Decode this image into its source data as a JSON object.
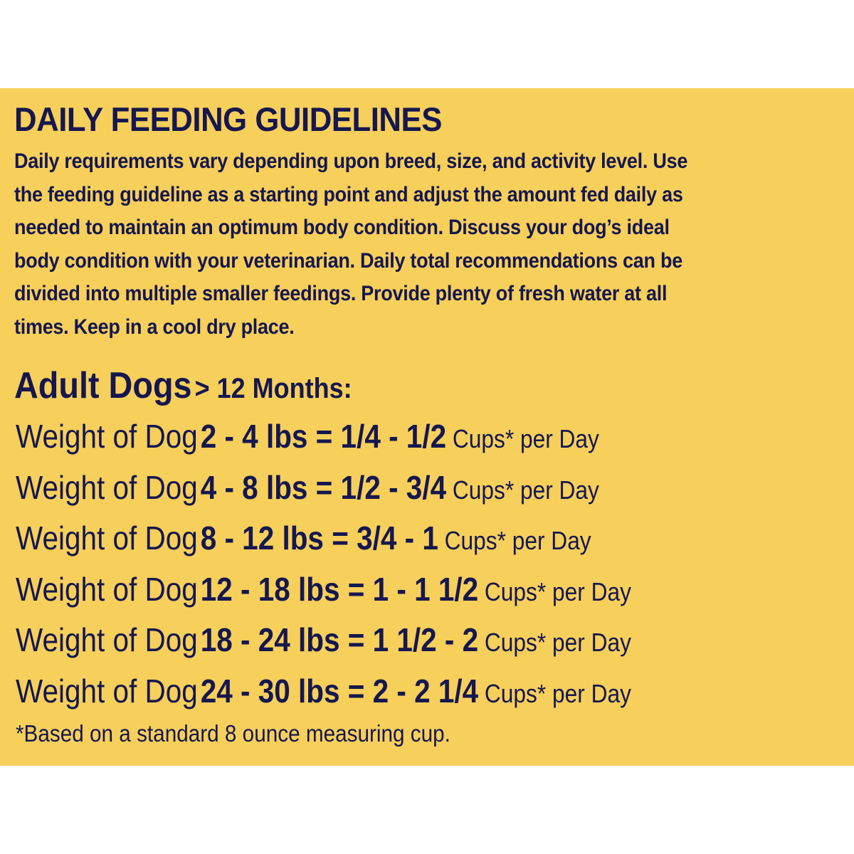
{
  "title": "DAILY FEEDING GUIDELINES",
  "paragraph_lines": [
    "Daily requirements vary depending upon breed, size, and activity level. Use",
    "the feeding guideline as a starting point and adjust the amount fed daily as",
    "needed to maintain an optimum body condition. Discuss your dog’s ideal",
    "body condition with your veterinarian. Daily total recommendations can be",
    "divided into multiple smaller feedings. Provide plenty of fresh water at all",
    "times. Keep in a cool dry place."
  ],
  "subheading": {
    "main": "Adult Dogs",
    "suffix": "> 12 Months:"
  },
  "rows": [
    {
      "label": "Weight of Dog",
      "value": "2 - 4 lbs = 1/4 - 1/2",
      "unit": "Cups* per Day"
    },
    {
      "label": "Weight of Dog",
      "value": "4 - 8 lbs = 1/2 - 3/4",
      "unit": "Cups* per Day"
    },
    {
      "label": "Weight of Dog",
      "value": "8 - 12 lbs = 3/4 - 1",
      "unit": "Cups* per Day"
    },
    {
      "label": "Weight of Dog",
      "value": "12 - 18 lbs = 1 - 1 1/2",
      "unit": "Cups* per Day"
    },
    {
      "label": "Weight of Dog",
      "value": "18 - 24 lbs = 1 1/2 - 2",
      "unit": "Cups* per Day"
    },
    {
      "label": "Weight of Dog",
      "value": "24 - 30 lbs = 2 - 2 1/4",
      "unit": "Cups* per Day"
    }
  ],
  "footnote": "*Based on a standard 8 ounce measuring cup.",
  "colors": {
    "background": "#f7cf5b",
    "text": "#15174f"
  }
}
